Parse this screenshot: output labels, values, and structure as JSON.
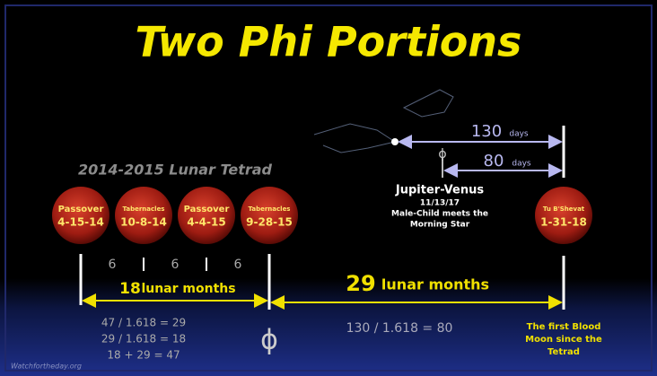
{
  "title": "Two Phi Portions",
  "tetrad_label": "2014-2015 Lunar Tetrad",
  "moons": [
    {
      "name": "Passover",
      "date": "4-15-14"
    },
    {
      "name": "Tabernacles",
      "date": "10-8-14"
    },
    {
      "name": "Passover",
      "date": "4-4-15"
    },
    {
      "name": "Tabernacles",
      "date": "9-28-15"
    },
    {
      "name": "Tu B'Shevat",
      "date": "1-31-18"
    }
  ],
  "gaps": [
    "6",
    "6",
    "6"
  ],
  "spans": [
    {
      "number": "18",
      "unit": "lunar months"
    },
    {
      "number": "29",
      "unit": "lunar months"
    }
  ],
  "day_spans": [
    {
      "number": "130",
      "unit": "days"
    },
    {
      "number": "80",
      "unit": "days"
    }
  ],
  "event": {
    "title": "Jupiter-Venus",
    "date": "11/13/17",
    "caption": [
      "Male-Child meets the",
      "Morning Star"
    ]
  },
  "phi": "ϕ",
  "equations_left": [
    "47 / 1.618 = 29",
    "29 / 1.618 = 18",
    "18 + 29 = 47"
  ],
  "equation_right": "130 / 1.618 = 80",
  "note": [
    "The first Blood",
    "Moon since the",
    "Tetrad"
  ],
  "credit": "Watchfortheday.org"
}
